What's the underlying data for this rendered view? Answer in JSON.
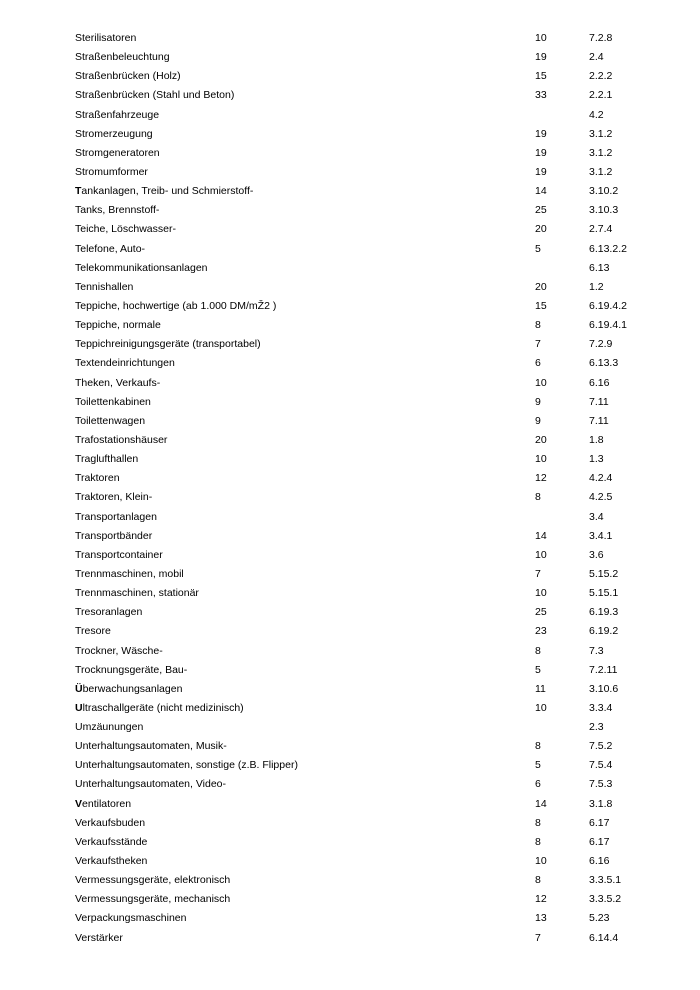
{
  "page": {
    "background_color": "#ffffff",
    "text_color": "#000000",
    "description": "Alphabetical depreciation rate table page (German), entries S–V"
  },
  "table": {
    "columns": [
      "item",
      "value",
      "section"
    ],
    "rows": [
      {
        "lead": "",
        "rest": "Sterilisatoren",
        "value": "10",
        "section": "7.2.8"
      },
      {
        "lead": "",
        "rest": "Straßenbeleuchtung",
        "value": "19",
        "section": "2.4"
      },
      {
        "lead": "",
        "rest": "Straßenbrücken (Holz)",
        "value": "15",
        "section": "2.2.2"
      },
      {
        "lead": "",
        "rest": "Straßenbrücken (Stahl und Beton)",
        "value": "33",
        "section": "2.2.1"
      },
      {
        "lead": "",
        "rest": "Straßenfahrzeuge",
        "value": "",
        "section": "4.2"
      },
      {
        "lead": "",
        "rest": "Stromerzeugung",
        "value": "19",
        "section": "3.1.2"
      },
      {
        "lead": "",
        "rest": "Stromgeneratoren",
        "value": "19",
        "section": "3.1.2"
      },
      {
        "lead": "",
        "rest": "Stromumformer",
        "value": "19",
        "section": "3.1.2"
      },
      {
        "lead": "T",
        "rest": "ankanlagen, Treib- und Schmierstoff-",
        "value": "14",
        "section": "3.10.2"
      },
      {
        "lead": "",
        "rest": "Tanks, Brennstoff-",
        "value": "25",
        "section": "3.10.3"
      },
      {
        "lead": "",
        "rest": "Teiche, Löschwasser-",
        "value": "20",
        "section": "2.7.4"
      },
      {
        "lead": "",
        "rest": "Telefone, Auto-",
        "value": "5",
        "section": "6.13.2.2"
      },
      {
        "lead": "",
        "rest": "Telekommunikationsanlagen",
        "value": "",
        "section": "6.13"
      },
      {
        "lead": "",
        "rest": "Tennishallen",
        "value": "20",
        "section": "1.2"
      },
      {
        "lead": "",
        "rest": "Teppiche, hochwertige (ab 1.000 DM/mŽ2 )",
        "value": "15",
        "section": "6.19.4.2"
      },
      {
        "lead": "",
        "rest": "Teppiche, normale",
        "value": "8",
        "section": "6.19.4.1"
      },
      {
        "lead": "",
        "rest": "Teppichreinigungsgeräte (transportabel)",
        "value": "7",
        "section": "7.2.9"
      },
      {
        "lead": "",
        "rest": "Textendeinrichtungen",
        "value": "6",
        "section": "6.13.3"
      },
      {
        "lead": "",
        "rest": "Theken, Verkaufs-",
        "value": "10",
        "section": "6.16"
      },
      {
        "lead": "",
        "rest": "Toilettenkabinen",
        "value": "9",
        "section": "7.11"
      },
      {
        "lead": "",
        "rest": "Toilettenwagen",
        "value": "9",
        "section": "7.11"
      },
      {
        "lead": "",
        "rest": "Trafostationshäuser",
        "value": "20",
        "section": "1.8"
      },
      {
        "lead": "",
        "rest": "Traglufthallen",
        "value": "10",
        "section": "1.3"
      },
      {
        "lead": "",
        "rest": "Traktoren",
        "value": "12",
        "section": "4.2.4"
      },
      {
        "lead": "",
        "rest": "Traktoren, Klein-",
        "value": "8",
        "section": "4.2.5"
      },
      {
        "lead": "",
        "rest": "Transportanlagen",
        "value": "",
        "section": "3.4"
      },
      {
        "lead": "",
        "rest": "Transportbänder",
        "value": "14",
        "section": "3.4.1"
      },
      {
        "lead": "",
        "rest": "Transportcontainer",
        "value": "10",
        "section": "3.6"
      },
      {
        "lead": "",
        "rest": "Trennmaschinen, mobil",
        "value": "7",
        "section": "5.15.2"
      },
      {
        "lead": "",
        "rest": "Trennmaschinen, stationär",
        "value": "10",
        "section": "5.15.1"
      },
      {
        "lead": "",
        "rest": "Tresoranlagen",
        "value": "25",
        "section": "6.19.3"
      },
      {
        "lead": "",
        "rest": "Tresore",
        "value": "23",
        "section": "6.19.2"
      },
      {
        "lead": "",
        "rest": "Trockner, Wäsche-",
        "value": "8",
        "section": "7.3"
      },
      {
        "lead": "",
        "rest": "Trocknungsgeräte, Bau-",
        "value": "5",
        "section": "7.2.11"
      },
      {
        "lead": "Ü",
        "rest": "berwachungsanlagen",
        "value": "11",
        "section": "3.10.6"
      },
      {
        "lead": "U",
        "rest": "ltraschallgeräte (nicht medizinisch)",
        "value": "10",
        "section": "3.3.4"
      },
      {
        "lead": "",
        "rest": "Umzäunungen",
        "value": "",
        "section": "2.3"
      },
      {
        "lead": "",
        "rest": "Unterhaltungsautomaten, Musik-",
        "value": "8",
        "section": "7.5.2"
      },
      {
        "lead": "",
        "rest": "Unterhaltungsautomaten, sonstige (z.B. Flipper)",
        "value": "5",
        "section": "7.5.4"
      },
      {
        "lead": "",
        "rest": "Unterhaltungsautomaten, Video-",
        "value": "6",
        "section": "7.5.3"
      },
      {
        "lead": "V",
        "rest": "entilatoren",
        "value": "14",
        "section": "3.1.8"
      },
      {
        "lead": "",
        "rest": "Verkaufsbuden",
        "value": "8",
        "section": "6.17"
      },
      {
        "lead": "",
        "rest": "Verkaufsstände",
        "value": "8",
        "section": "6.17"
      },
      {
        "lead": "",
        "rest": "Verkaufstheken",
        "value": "10",
        "section": "6.16"
      },
      {
        "lead": "",
        "rest": "Vermessungsgeräte, elektronisch",
        "value": "8",
        "section": "3.3.5.1"
      },
      {
        "lead": "",
        "rest": "Vermessungsgeräte, mechanisch",
        "value": "12",
        "section": "3.3.5.2"
      },
      {
        "lead": "",
        "rest": "Verpackungsmaschinen",
        "value": "13",
        "section": "5.23"
      },
      {
        "lead": "",
        "rest": "Verstärker",
        "value": "7",
        "section": "6.14.4"
      }
    ]
  }
}
